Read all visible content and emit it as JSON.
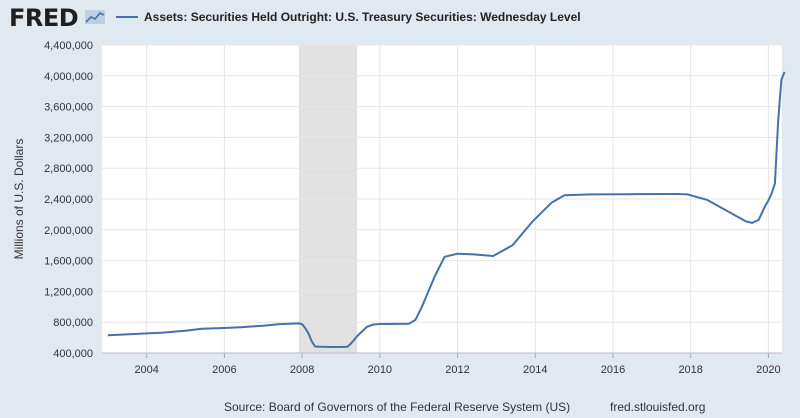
{
  "logo": "FRED",
  "logo_mark": "line-chart-icon",
  "footer": {
    "source": "Source: Board of Governors of the Federal Reserve System (US)",
    "url": "fred.stlouisfed.org"
  },
  "colors": {
    "line": "#4572a7",
    "recession": "#e1e1e1",
    "grid": "#e6e6e6",
    "page_background": "#e1e9f0",
    "plot_background": "#ffffff"
  },
  "chart_data": {
    "type": "line",
    "title": "",
    "xlabel": "",
    "ylabel": "Millions of U.S. Dollars",
    "xlim": [
      2002.85,
      2020.35
    ],
    "ylim": [
      400000,
      4400000
    ],
    "grid": true,
    "legend_placement": "top-left",
    "x_ticks": [
      2004,
      2006,
      2008,
      2010,
      2012,
      2014,
      2016,
      2018,
      2020
    ],
    "x_tick_labels": [
      "2004",
      "2006",
      "2008",
      "2010",
      "2012",
      "2014",
      "2016",
      "2018",
      "2020"
    ],
    "y_ticks": [
      400000,
      800000,
      1200000,
      1600000,
      2000000,
      2400000,
      2800000,
      3200000,
      3600000,
      4000000,
      4400000
    ],
    "y_tick_labels": [
      "400,000",
      "800,000",
      "1,200,000",
      "1,600,000",
      "2,000,000",
      "2,400,000",
      "2,800,000",
      "3,200,000",
      "3,600,000",
      "4,000,000",
      "4,400,000"
    ],
    "recessions": [
      {
        "start": "2007-12",
        "end": "2009-06"
      }
    ],
    "series": [
      {
        "name": "Assets: Securities Held Outright: U.S. Treasury Securities: Wednesday Level",
        "x": [
          "2003-01",
          "2003-06",
          "2004-01",
          "2004-06",
          "2005-01",
          "2005-06",
          "2006-01",
          "2006-06",
          "2007-01",
          "2007-06",
          "2007-09",
          "2007-12",
          "2008-01",
          "2008-02",
          "2008-03",
          "2008-04",
          "2008-05",
          "2008-07",
          "2008-10",
          "2009-01",
          "2009-03",
          "2009-04",
          "2009-06",
          "2009-09",
          "2009-11",
          "2010-01",
          "2010-06",
          "2010-10",
          "2010-12",
          "2011-02",
          "2011-04",
          "2011-06",
          "2011-09",
          "2012-01",
          "2012-06",
          "2012-12",
          "2013-06",
          "2013-12",
          "2014-06",
          "2014-10",
          "2015-06",
          "2016-06",
          "2017-06",
          "2017-09",
          "2017-12",
          "2018-06",
          "2018-12",
          "2019-06",
          "2019-08",
          "2019-10",
          "2019-12",
          "2020-01",
          "2020-02",
          "2020-03",
          "2020-04",
          "2020-05",
          "2020-06"
        ],
        "values": [
          630000,
          640000,
          655000,
          665000,
          690000,
          715000,
          725000,
          735000,
          755000,
          775000,
          780000,
          785000,
          775000,
          720000,
          650000,
          550000,
          485000,
          480000,
          478000,
          478000,
          480000,
          520000,
          620000,
          740000,
          770000,
          776000,
          778000,
          780000,
          830000,
          1000000,
          1200000,
          1400000,
          1650000,
          1690000,
          1680000,
          1660000,
          1800000,
          2100000,
          2350000,
          2450000,
          2460000,
          2462000,
          2465000,
          2465000,
          2460000,
          2390000,
          2250000,
          2110000,
          2090000,
          2130000,
          2310000,
          2380000,
          2470000,
          2600000,
          3400000,
          3950000,
          4050000
        ]
      }
    ]
  }
}
